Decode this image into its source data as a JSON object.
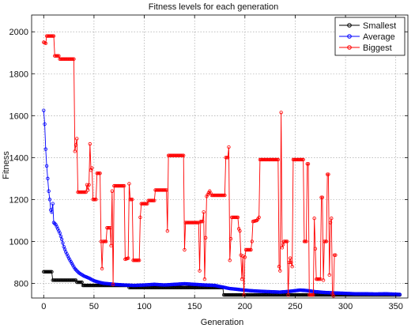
{
  "chart_data": {
    "type": "line",
    "title": "Fitness levels for each generation",
    "xlabel": "Generation",
    "ylabel": "Fitness",
    "xlim": [
      -12,
      362
    ],
    "ylim": [
      730,
      2080
    ],
    "grid": true,
    "legend_position": "top-right",
    "x_ticks": [
      0,
      50,
      100,
      150,
      200,
      250,
      300,
      350
    ],
    "y_ticks": [
      800,
      1000,
      1200,
      1400,
      1600,
      1800,
      2000
    ],
    "x_tick_labels": [
      "0",
      "50",
      "100",
      "150",
      "200",
      "250",
      "300",
      "350"
    ],
    "y_tick_labels": [
      "800",
      "1000",
      "1200",
      "1400",
      "1600",
      "1800",
      "2000"
    ],
    "series": [
      {
        "name": "Smallest",
        "color": "#000000",
        "points": [
          [
            0,
            855
          ],
          [
            8,
            855
          ],
          [
            9,
            815
          ],
          [
            32,
            815
          ],
          [
            33,
            805
          ],
          [
            38,
            805
          ],
          [
            39,
            790
          ],
          [
            84,
            790
          ],
          [
            85,
            780
          ],
          [
            178,
            780
          ],
          [
            179,
            745
          ],
          [
            354,
            745
          ]
        ]
      },
      {
        "name": "Average",
        "color": "#0000ff",
        "points": [
          [
            0,
            1625
          ],
          [
            1,
            1560
          ],
          [
            2,
            1440
          ],
          [
            3,
            1360
          ],
          [
            4,
            1300
          ],
          [
            5,
            1240
          ],
          [
            6,
            1200
          ],
          [
            7,
            1150
          ],
          [
            8,
            1140
          ],
          [
            9,
            1180
          ],
          [
            10,
            1090
          ],
          [
            12,
            1080
          ],
          [
            14,
            1060
          ],
          [
            16,
            1040
          ],
          [
            18,
            1010
          ],
          [
            20,
            975
          ],
          [
            22,
            950
          ],
          [
            25,
            920
          ],
          [
            28,
            895
          ],
          [
            31,
            870
          ],
          [
            35,
            850
          ],
          [
            40,
            835
          ],
          [
            45,
            825
          ],
          [
            50,
            812
          ],
          [
            55,
            805
          ],
          [
            60,
            800
          ],
          [
            70,
            795
          ],
          [
            80,
            792
          ],
          [
            90,
            790
          ],
          [
            100,
            792
          ],
          [
            110,
            795
          ],
          [
            120,
            792
          ],
          [
            130,
            795
          ],
          [
            140,
            798
          ],
          [
            150,
            795
          ],
          [
            160,
            792
          ],
          [
            170,
            790
          ],
          [
            178,
            782
          ],
          [
            185,
            775
          ],
          [
            195,
            770
          ],
          [
            205,
            765
          ],
          [
            215,
            762
          ],
          [
            225,
            760
          ],
          [
            235,
            758
          ],
          [
            245,
            762
          ],
          [
            255,
            768
          ],
          [
            262,
            765
          ],
          [
            270,
            760
          ],
          [
            280,
            756
          ],
          [
            290,
            754
          ],
          [
            300,
            752
          ],
          [
            310,
            750
          ],
          [
            320,
            750
          ],
          [
            330,
            749
          ],
          [
            340,
            750
          ],
          [
            350,
            748
          ],
          [
            354,
            747
          ]
        ]
      },
      {
        "name": "Biggest",
        "color": "#ff0000",
        "points": [
          [
            0,
            1950
          ],
          [
            2,
            1945
          ],
          [
            3,
            1980
          ],
          [
            10,
            1980
          ],
          [
            11,
            1885
          ],
          [
            15,
            1885
          ],
          [
            16,
            1870
          ],
          [
            30,
            1870
          ],
          [
            31,
            1430
          ],
          [
            33,
            1490
          ],
          [
            34,
            1235
          ],
          [
            42,
            1235
          ],
          [
            43,
            1270
          ],
          [
            44,
            1245
          ],
          [
            45,
            1270
          ],
          [
            46,
            1465
          ],
          [
            47,
            1340
          ],
          [
            48,
            1350
          ],
          [
            49,
            1200
          ],
          [
            52,
            1200
          ],
          [
            53,
            1325
          ],
          [
            56,
            1325
          ],
          [
            57,
            1000
          ],
          [
            58,
            870
          ],
          [
            59,
            1000
          ],
          [
            62,
            1000
          ],
          [
            63,
            1065
          ],
          [
            66,
            1065
          ],
          [
            67,
            980
          ],
          [
            68,
            1240
          ],
          [
            69,
            795
          ],
          [
            70,
            1265
          ],
          [
            80,
            1265
          ],
          [
            81,
            915
          ],
          [
            84,
            920
          ],
          [
            85,
            1275
          ],
          [
            86,
            1200
          ],
          [
            88,
            1200
          ],
          [
            89,
            910
          ],
          [
            95,
            910
          ],
          [
            96,
            1115
          ],
          [
            97,
            1180
          ],
          [
            103,
            1180
          ],
          [
            104,
            1195
          ],
          [
            110,
            1195
          ],
          [
            111,
            1245
          ],
          [
            122,
            1245
          ],
          [
            123,
            1050
          ],
          [
            124,
            1410
          ],
          [
            139,
            1410
          ],
          [
            140,
            960
          ],
          [
            141,
            1090
          ],
          [
            154,
            1090
          ],
          [
            155,
            860
          ],
          [
            156,
            1095
          ],
          [
            158,
            1095
          ],
          [
            159,
            1140
          ],
          [
            160,
            820
          ],
          [
            162,
            1215
          ],
          [
            165,
            1240
          ],
          [
            167,
            1220
          ],
          [
            180,
            1220
          ],
          [
            181,
            1400
          ],
          [
            183,
            1400
          ],
          [
            184,
            1450
          ],
          [
            185,
            910
          ],
          [
            187,
            1115
          ],
          [
            193,
            1115
          ],
          [
            194,
            1060
          ],
          [
            195,
            1050
          ],
          [
            197,
            820
          ],
          [
            198,
            930
          ],
          [
            199,
            745
          ],
          [
            200,
            925
          ],
          [
            201,
            960
          ],
          [
            206,
            960
          ],
          [
            207,
            1000
          ],
          [
            208,
            1095
          ],
          [
            212,
            1100
          ],
          [
            214,
            1115
          ],
          [
            215,
            1390
          ],
          [
            233,
            1390
          ],
          [
            234,
            880
          ],
          [
            235,
            860
          ],
          [
            236,
            1615
          ],
          [
            237,
            970
          ],
          [
            239,
            1000
          ],
          [
            242,
            1000
          ],
          [
            243,
            745
          ],
          [
            244,
            900
          ],
          [
            245,
            920
          ],
          [
            247,
            880
          ],
          [
            248,
            1390
          ],
          [
            258,
            1390
          ],
          [
            259,
            1000
          ],
          [
            261,
            1000
          ],
          [
            262,
            1370
          ],
          [
            263,
            1370
          ],
          [
            264,
            745
          ],
          [
            268,
            745
          ],
          [
            269,
            1110
          ],
          [
            271,
            820
          ],
          [
            275,
            820
          ],
          [
            276,
            1210
          ],
          [
            277,
            1210
          ],
          [
            278,
            815
          ],
          [
            279,
            1000
          ],
          [
            281,
            1000
          ],
          [
            282,
            1320
          ],
          [
            283,
            1320
          ],
          [
            284,
            840
          ],
          [
            285,
            1090
          ],
          [
            286,
            1110
          ],
          [
            287,
            750
          ],
          [
            288,
            740
          ],
          [
            289,
            935
          ],
          [
            290,
            935
          ]
        ]
      }
    ]
  }
}
